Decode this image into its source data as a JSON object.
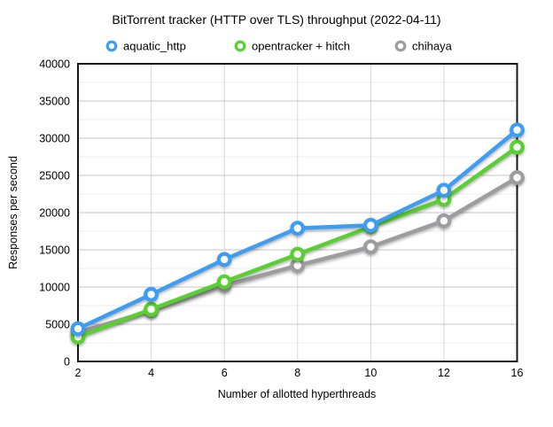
{
  "chart_data": {
    "type": "line",
    "title": "BitTorrent tracker (HTTP over TLS) throughput (2022-04-11)",
    "xlabel": "Number of allotted hyperthreads",
    "ylabel": "Responses per second",
    "categories": [
      "2",
      "4",
      "6",
      "8",
      "10",
      "12",
      "16"
    ],
    "series": [
      {
        "name": "aquatic_http",
        "color": "#3d9cf4",
        "values": [
          4400,
          9000,
          13700,
          17900,
          18300,
          23000,
          31100
        ]
      },
      {
        "name": "opentracker + hitch",
        "color": "#58d02f",
        "values": [
          3300,
          7000,
          10700,
          14400,
          18100,
          21800,
          28800
        ]
      },
      {
        "name": "chihaya",
        "color": "#9d9da0",
        "values": [
          3900,
          6800,
          10200,
          12900,
          15400,
          18900,
          24700
        ]
      }
    ],
    "ylim": [
      0,
      40000
    ],
    "y_major_step": 5000,
    "y_minor_step": 2500,
    "y_tick_labels": [
      "0",
      "5000",
      "10000",
      "15000",
      "20000",
      "25000",
      "30000",
      "35000",
      "40000"
    ],
    "grid": true,
    "legend_position": "top"
  },
  "colors": {
    "frame": "#161616",
    "grid_major": "#c4c4c4",
    "grid_minor": "#ececec",
    "grid_vertical": "#d8d8d8",
    "marker_fill": "#ffffff",
    "background": "#ffffff",
    "text": "#000000"
  }
}
